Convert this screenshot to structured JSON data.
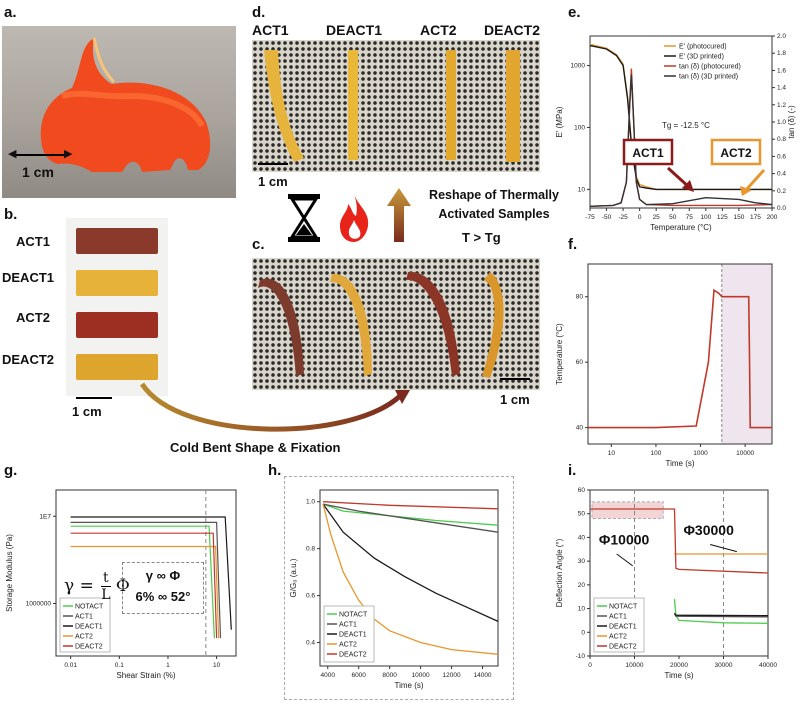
{
  "panel_labels": {
    "a": "a.",
    "b": "b.",
    "c": "c.",
    "d": "d.",
    "e": "e.",
    "f": "f.",
    "g": "g.",
    "h": "h.",
    "i": "i."
  },
  "samples": [
    "ACT1",
    "DEACT1",
    "ACT2",
    "DEACT2"
  ],
  "scale_1cm": "1 cm",
  "captions": {
    "cold_bent": "Cold Bent Shape & Fixation",
    "reshape": "Reshape of Thermally Activated Samples",
    "t_condition": "T > Tg"
  },
  "colors": {
    "orange": "#e8962f",
    "black": "#1a1a1a",
    "darkred": "#8b1a1a",
    "red": "#c0392b",
    "green": "#4ccb4c"
  },
  "panel_g_equations": {
    "gamma": "γ =",
    "frac_top": "t",
    "frac_bottom": "L",
    "phi": "Φ",
    "prop": "γ ∞ Φ",
    "example": "6% ∞ 52°"
  },
  "panel_i_labels": {
    "phi1": "Φ10000",
    "phi2": "Φ30000"
  },
  "chart_data": [
    {
      "id": "e",
      "type": "line",
      "title": "",
      "xlabel": "Temperature (°C)",
      "ylabel": "E' (MPa)",
      "y2label": "tan (δ) (-)",
      "xlim": [
        -75,
        200
      ],
      "ylim_log": [
        5,
        3000
      ],
      "y2lim": [
        0,
        2.0
      ],
      "x_ticks": [
        "-75",
        "-50",
        "-25",
        "0",
        "25",
        "50",
        "75",
        "100",
        "125",
        "150",
        "175",
        "200"
      ],
      "y_ticks": [
        "10",
        "100",
        "1000"
      ],
      "y2_ticks": [
        "0.0",
        "0.2",
        "0.4",
        "0.6",
        "0.8",
        "1.0",
        "1.2",
        "1.4",
        "1.6",
        "1.8",
        "2.0"
      ],
      "annotation": "Tg = -12.5 °C",
      "boxes": [
        "ACT1",
        "ACT2"
      ],
      "series": [
        {
          "name": "E' (photocured)",
          "color": "#e8962f",
          "x": [
            -75,
            -50,
            -35,
            -25,
            -18,
            -12,
            -5,
            0,
            10,
            25,
            50,
            100,
            150,
            200
          ],
          "y": [
            2200,
            1900,
            1500,
            1050,
            300,
            50,
            16,
            12,
            11,
            10,
            10,
            10,
            10,
            10
          ]
        },
        {
          "name": "E' (3D printed)",
          "color": "#1a1a1a",
          "x": [
            -75,
            -50,
            -35,
            -25,
            -18,
            -12,
            -5,
            0,
            10,
            25,
            50,
            100,
            150,
            200
          ],
          "y": [
            2100,
            1850,
            1450,
            1000,
            280,
            45,
            15,
            11,
            10.5,
            10,
            10,
            10,
            10,
            10
          ]
        },
        {
          "name": "tan (δ) (photocured)",
          "color": "#c0392b",
          "x": [
            -75,
            -40,
            -28,
            -20,
            -15,
            -12.5,
            -9,
            -5,
            0,
            10,
            50,
            100,
            150,
            200
          ],
          "y": [
            0.02,
            0.03,
            0.06,
            0.3,
            1.2,
            1.62,
            1.0,
            0.3,
            0.1,
            0.04,
            0.03,
            0.03,
            0.03,
            0.04
          ]
        },
        {
          "name": "tan (δ) (3D printed)",
          "color": "#333333",
          "x": [
            -75,
            -40,
            -28,
            -20,
            -15,
            -12.5,
            -9,
            -5,
            0,
            10,
            50,
            100,
            150,
            175,
            200
          ],
          "y": [
            0.02,
            0.03,
            0.06,
            0.3,
            1.2,
            1.55,
            1.0,
            0.3,
            0.1,
            0.04,
            0.05,
            0.12,
            0.1,
            0.06,
            0.04
          ]
        }
      ]
    },
    {
      "id": "f",
      "type": "line",
      "xlabel": "Time (s)",
      "ylabel": "Temperature (°C)",
      "xlim_log": [
        3,
        40000
      ],
      "ylim": [
        35,
        90
      ],
      "x_ticks": [
        "10",
        "100",
        "1000",
        "10000"
      ],
      "y_ticks": [
        "40",
        "60",
        "80"
      ],
      "series": [
        {
          "name": "Temperature",
          "color": "#c0392b",
          "x": [
            3,
            100,
            800,
            1500,
            2000,
            2600,
            3000,
            3500,
            12000,
            12500,
            13000,
            40000
          ],
          "y": [
            40,
            40,
            40.5,
            60,
            82,
            81,
            80,
            80,
            80,
            62,
            40,
            40
          ]
        }
      ]
    },
    {
      "id": "g",
      "type": "line",
      "xlabel": "Shear Strain (%)",
      "ylabel": "Storage Modulus (Pa)",
      "xlim_log": [
        0.005,
        25
      ],
      "ylim_log": [
        250000,
        20000000
      ],
      "x_ticks": [
        "0.01",
        "0.1",
        "1",
        "10"
      ],
      "y_ticks": [
        "1000000",
        "1E7"
      ],
      "series": [
        {
          "name": "NOTACT",
          "color": "#4ccb4c",
          "x": [
            0.01,
            7,
            9
          ],
          "y": [
            7700000,
            7700000,
            400000
          ]
        },
        {
          "name": "ACT1",
          "color": "#555555",
          "x": [
            0.01,
            10,
            12
          ],
          "y": [
            8500000,
            8500000,
            400000
          ]
        },
        {
          "name": "DEACT1",
          "color": "#1a1a1a",
          "x": [
            0.01,
            15,
            20
          ],
          "y": [
            9800000,
            9800000,
            500000
          ]
        },
        {
          "name": "ACT2",
          "color": "#e8962f",
          "x": [
            0.01,
            9.5,
            11
          ],
          "y": [
            4500000,
            4500000,
            400000
          ]
        },
        {
          "name": "DEACT2",
          "color": "#c0392b",
          "x": [
            0.01,
            8.5,
            10
          ],
          "y": [
            6400000,
            6400000,
            400000
          ]
        }
      ]
    },
    {
      "id": "h",
      "type": "line",
      "xlabel": "Time (s)",
      "ylabel": "G/G₀ (a.u.)",
      "xlim": [
        3500,
        15000
      ],
      "ylim": [
        0.3,
        1.05
      ],
      "x_ticks": [
        "4000",
        "6000",
        "8000",
        "10000",
        "12000",
        "14000"
      ],
      "y_ticks": [
        "0.4",
        "0.6",
        "0.8",
        "1.0"
      ],
      "series": [
        {
          "name": "NOTACT",
          "color": "#4ccb4c",
          "x": [
            3700,
            5000,
            8000,
            11000,
            15000
          ],
          "y": [
            0.99,
            0.96,
            0.94,
            0.92,
            0.9
          ]
        },
        {
          "name": "ACT1",
          "color": "#555555",
          "x": [
            3700,
            6000,
            9000,
            12000,
            15000
          ],
          "y": [
            0.99,
            0.96,
            0.93,
            0.9,
            0.87
          ]
        },
        {
          "name": "DEACT1",
          "color": "#1a1a1a",
          "x": [
            3700,
            5000,
            7000,
            9000,
            11000,
            13000,
            15000
          ],
          "y": [
            0.99,
            0.87,
            0.76,
            0.68,
            0.61,
            0.55,
            0.49
          ]
        },
        {
          "name": "ACT2",
          "color": "#e8962f",
          "x": [
            3700,
            4200,
            5000,
            6000,
            7000,
            8000,
            10000,
            12000,
            15000
          ],
          "y": [
            0.99,
            0.86,
            0.7,
            0.58,
            0.5,
            0.45,
            0.4,
            0.37,
            0.35
          ]
        },
        {
          "name": "DEACT2",
          "color": "#c0392b",
          "x": [
            3700,
            8000,
            15000
          ],
          "y": [
            1.0,
            0.985,
            0.97
          ]
        }
      ]
    },
    {
      "id": "i",
      "type": "line",
      "xlabel": "Time (s)",
      "ylabel": "Deflection Angle (°)",
      "xlim": [
        0,
        40000
      ],
      "ylim": [
        -10,
        60
      ],
      "x_ticks": [
        "0",
        "10000",
        "20000",
        "30000",
        "40000"
      ],
      "y_ticks": [
        "-10",
        "0",
        "10",
        "20",
        "30",
        "40",
        "50",
        "60"
      ],
      "series": [
        {
          "name": "NOTACT",
          "color": "#4ccb4c",
          "x": [
            19000,
            19300,
            20000,
            25000,
            30000,
            40000
          ],
          "y": [
            14,
            7,
            5,
            4.5,
            4,
            3.8
          ]
        },
        {
          "name": "ACT1",
          "color": "#555555",
          "x": [
            19000,
            19300,
            40000
          ],
          "y": [
            8,
            6.8,
            6.5
          ]
        },
        {
          "name": "DEACT1",
          "color": "#1a1a1a",
          "x": [
            19000,
            19300,
            40000
          ],
          "y": [
            8,
            7.2,
            7
          ]
        },
        {
          "name": "ACT2",
          "color": "#e8962f",
          "x": [
            19000,
            19300,
            40000
          ],
          "y": [
            33,
            33,
            33
          ]
        },
        {
          "name": "DEACT2",
          "color": "#c0392b",
          "x": [
            0,
            19000,
            19300,
            20000,
            40000
          ],
          "y": [
            52,
            52,
            27,
            26.5,
            25
          ]
        }
      ]
    }
  ]
}
